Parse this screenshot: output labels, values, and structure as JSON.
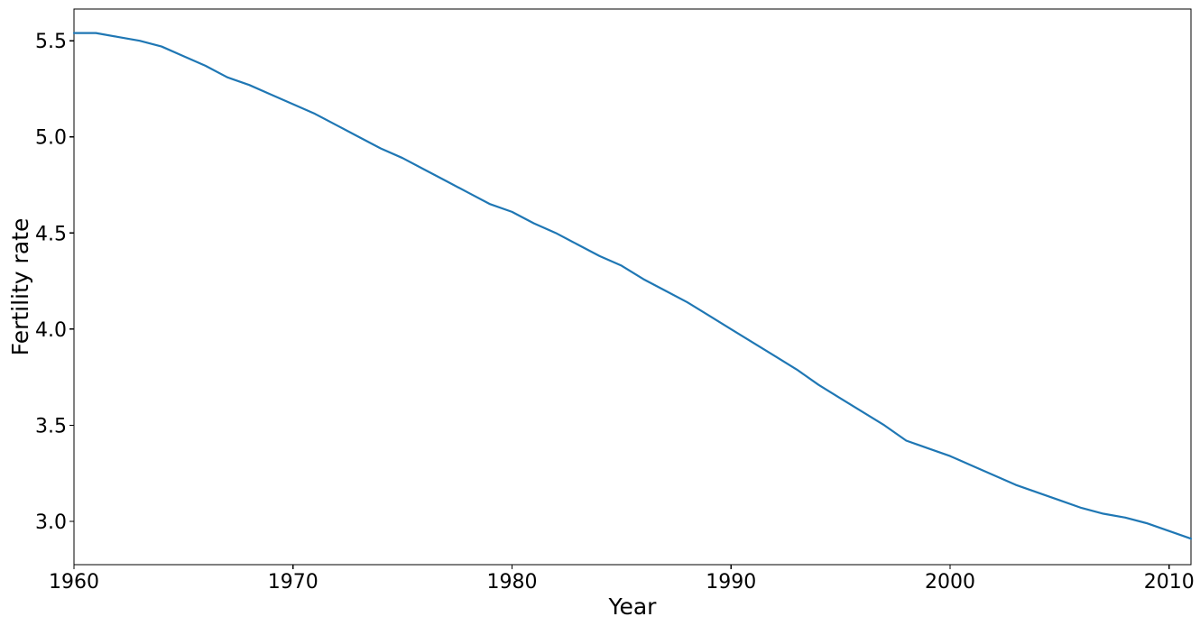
{
  "figure": {
    "background": "#ffffff"
  },
  "chart_data": {
    "type": "line",
    "title": "",
    "xlabel": "Year",
    "ylabel": "Fertility rate",
    "grid": false,
    "legend": "none",
    "axis_color": "#000000",
    "xlim": [
      1960,
      2011
    ],
    "ylim": [
      2.775,
      5.665
    ],
    "xticks": {
      "values": [
        1960,
        1970,
        1980,
        1990,
        2000,
        2010
      ],
      "labels": [
        "1960",
        "1970",
        "1980",
        "1990",
        "2000",
        "2010"
      ]
    },
    "yticks": {
      "values": [
        3.0,
        3.5,
        4.0,
        4.5,
        5.0,
        5.5
      ],
      "labels": [
        "3.0",
        "3.5",
        "4.0",
        "4.5",
        "5.0",
        "5.5"
      ]
    },
    "series": [
      {
        "name": "fertility-rate",
        "color": "#1f77b4",
        "x": [
          1960,
          1961,
          1962,
          1963,
          1964,
          1965,
          1966,
          1967,
          1968,
          1969,
          1970,
          1971,
          1972,
          1973,
          1974,
          1975,
          1976,
          1977,
          1978,
          1979,
          1980,
          1981,
          1982,
          1983,
          1984,
          1985,
          1986,
          1987,
          1988,
          1989,
          1990,
          1991,
          1992,
          1993,
          1994,
          1995,
          1996,
          1997,
          1998,
          1999,
          2000,
          2001,
          2002,
          2003,
          2004,
          2005,
          2006,
          2007,
          2008,
          2009,
          2010,
          2011
        ],
        "y": [
          5.54,
          5.54,
          5.52,
          5.5,
          5.47,
          5.42,
          5.37,
          5.31,
          5.27,
          5.22,
          5.17,
          5.12,
          5.06,
          5.0,
          4.94,
          4.89,
          4.83,
          4.77,
          4.71,
          4.65,
          4.61,
          4.55,
          4.5,
          4.44,
          4.38,
          4.33,
          4.26,
          4.2,
          4.14,
          4.07,
          4.0,
          3.93,
          3.86,
          3.79,
          3.71,
          3.64,
          3.57,
          3.5,
          3.42,
          3.38,
          3.34,
          3.29,
          3.24,
          3.19,
          3.15,
          3.11,
          3.07,
          3.04,
          3.02,
          2.99,
          2.95,
          2.91
        ]
      }
    ]
  }
}
